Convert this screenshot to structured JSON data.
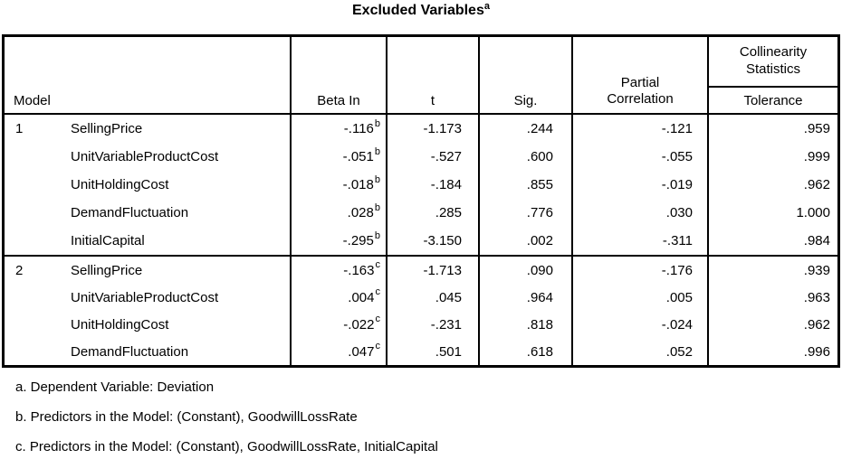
{
  "title": {
    "text": "Excluded Variables",
    "superscript": "a"
  },
  "table": {
    "header": {
      "model": "Model",
      "beta_in": "Beta In",
      "t": "t",
      "sig": "Sig.",
      "partial_correlation": "Partial Correlation",
      "collinearity_statistics": "Collinearity Statistics",
      "tolerance": "Tolerance"
    },
    "rows": [
      {
        "model": "1",
        "variable": "SellingPrice",
        "beta_in": "-.116",
        "beta_sup": "b",
        "t": "-1.173",
        "sig": ".244",
        "partial": "-.121",
        "tolerance": ".959"
      },
      {
        "model": "",
        "variable": "UnitVariableProductCost",
        "beta_in": "-.051",
        "beta_sup": "b",
        "t": "-.527",
        "sig": ".600",
        "partial": "-.055",
        "tolerance": ".999"
      },
      {
        "model": "",
        "variable": "UnitHoldingCost",
        "beta_in": "-.018",
        "beta_sup": "b",
        "t": "-.184",
        "sig": ".855",
        "partial": "-.019",
        "tolerance": ".962"
      },
      {
        "model": "",
        "variable": "DemandFluctuation",
        "beta_in": ".028",
        "beta_sup": "b",
        "t": ".285",
        "sig": ".776",
        "partial": ".030",
        "tolerance": "1.000"
      },
      {
        "model": "",
        "variable": "InitialCapital",
        "beta_in": "-.295",
        "beta_sup": "b",
        "t": "-3.150",
        "sig": ".002",
        "partial": "-.311",
        "tolerance": ".984"
      },
      {
        "model": "2",
        "variable": "SellingPrice",
        "beta_in": "-.163",
        "beta_sup": "c",
        "t": "-1.713",
        "sig": ".090",
        "partial": "-.176",
        "tolerance": ".939"
      },
      {
        "model": "",
        "variable": "UnitVariableProductCost",
        "beta_in": ".004",
        "beta_sup": "c",
        "t": ".045",
        "sig": ".964",
        "partial": ".005",
        "tolerance": ".963"
      },
      {
        "model": "",
        "variable": "UnitHoldingCost",
        "beta_in": "-.022",
        "beta_sup": "c",
        "t": "-.231",
        "sig": ".818",
        "partial": "-.024",
        "tolerance": ".962"
      },
      {
        "model": "",
        "variable": "DemandFluctuation",
        "beta_in": ".047",
        "beta_sup": "c",
        "t": ".501",
        "sig": ".618",
        "partial": ".052",
        "tolerance": ".996"
      }
    ]
  },
  "footnotes": [
    "a. Dependent Variable: Deviation",
    "b. Predictors in the Model: (Constant), GoodwillLossRate",
    "c. Predictors in the Model: (Constant), GoodwillLossRate, InitialCapital"
  ],
  "colors": {
    "border": "#000000",
    "text": "#000000",
    "background": "#ffffff"
  }
}
